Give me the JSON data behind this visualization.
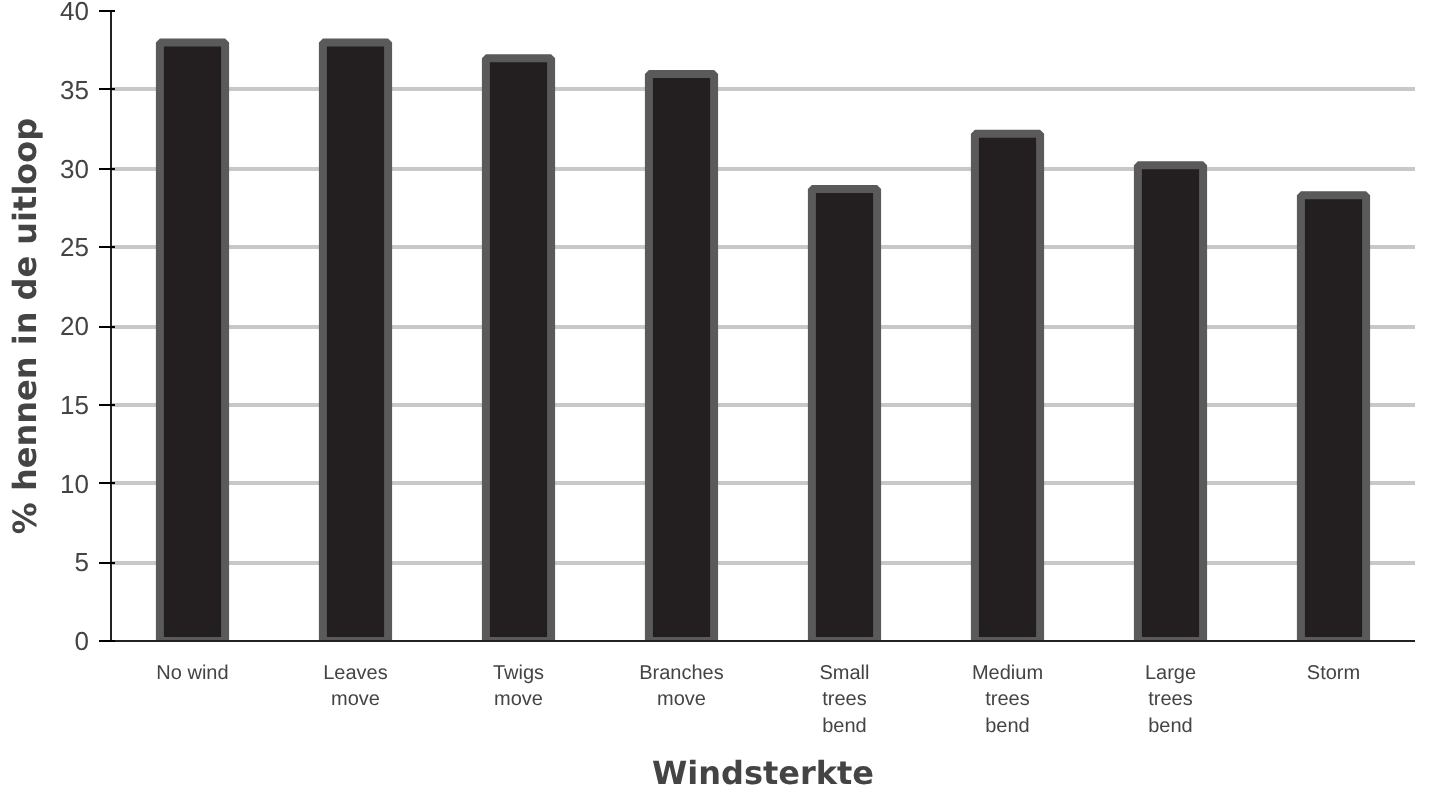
{
  "chart_data": {
    "type": "bar",
    "xlabel": "Windsterkte",
    "ylabel": "% hennen in de uitloop",
    "categories": [
      "No wind",
      "Leaves\nmove",
      "Twigs\nmove",
      "Branches\nmove",
      "Small\ntrees\nbend",
      "Medium\ntrees\nbend",
      "Large\ntrees\nbend",
      "Storm"
    ],
    "values": [
      38,
      38,
      37,
      36,
      28.7,
      32.2,
      30.2,
      28.3
    ],
    "color": "#231f20",
    "ylim": [
      0,
      40
    ],
    "yticks": [
      0,
      5,
      10,
      15,
      20,
      25,
      30,
      35,
      40
    ],
    "grid": "y"
  }
}
